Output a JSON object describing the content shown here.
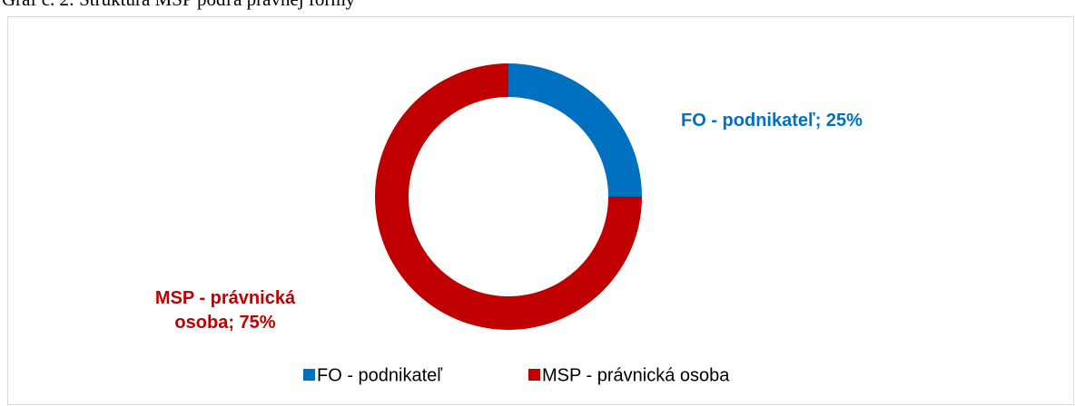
{
  "chart_data": {
    "type": "donut",
    "title": "Graf č. 2: Štruktúra MSP podľa právnej formy",
    "categories": [
      "FO - podnikateľ",
      "MSP - právnická osoba"
    ],
    "values": [
      25,
      75
    ],
    "value_labels": [
      "FO - podnikateľ; 25%",
      "MSP - právnická osoba; 75%"
    ],
    "colors": [
      "#0070c0",
      "#c00000"
    ],
    "legend": "bottom"
  }
}
